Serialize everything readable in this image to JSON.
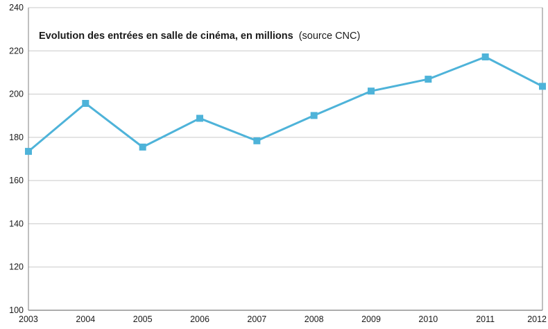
{
  "chart": {
    "title_bold": "Evolution des entrées en salle de cinéma, en millions",
    "title_source": "(source CNC)"
  },
  "chart_data": {
    "type": "line",
    "title": "Evolution des entrées en salle de cinéma, en millions",
    "subtitle": "(source CNC)",
    "categories": [
      "2003",
      "2004",
      "2005",
      "2006",
      "2007",
      "2008",
      "2009",
      "2010",
      "2011",
      "2012"
    ],
    "series": [
      {
        "name": "Entrées en salle de cinéma (millions)",
        "values": [
          173.5,
          195.7,
          175.5,
          188.8,
          178.4,
          190.1,
          201.4,
          206.9,
          217.2,
          203.6
        ]
      }
    ],
    "xlabel": "",
    "ylabel": "",
    "ylim": [
      100,
      240
    ],
    "yticks": [
      100,
      120,
      140,
      160,
      180,
      200,
      220,
      240
    ],
    "grid": true,
    "legend_position": "none",
    "line_color": "#4eb3d9",
    "marker": "square",
    "marker_size": 9,
    "grid_color": "#c9c9c9",
    "axis_color": "#808080",
    "bottom_axis_color": "#595959",
    "text_color": "#1a1a1a",
    "background": "#ffffff"
  }
}
